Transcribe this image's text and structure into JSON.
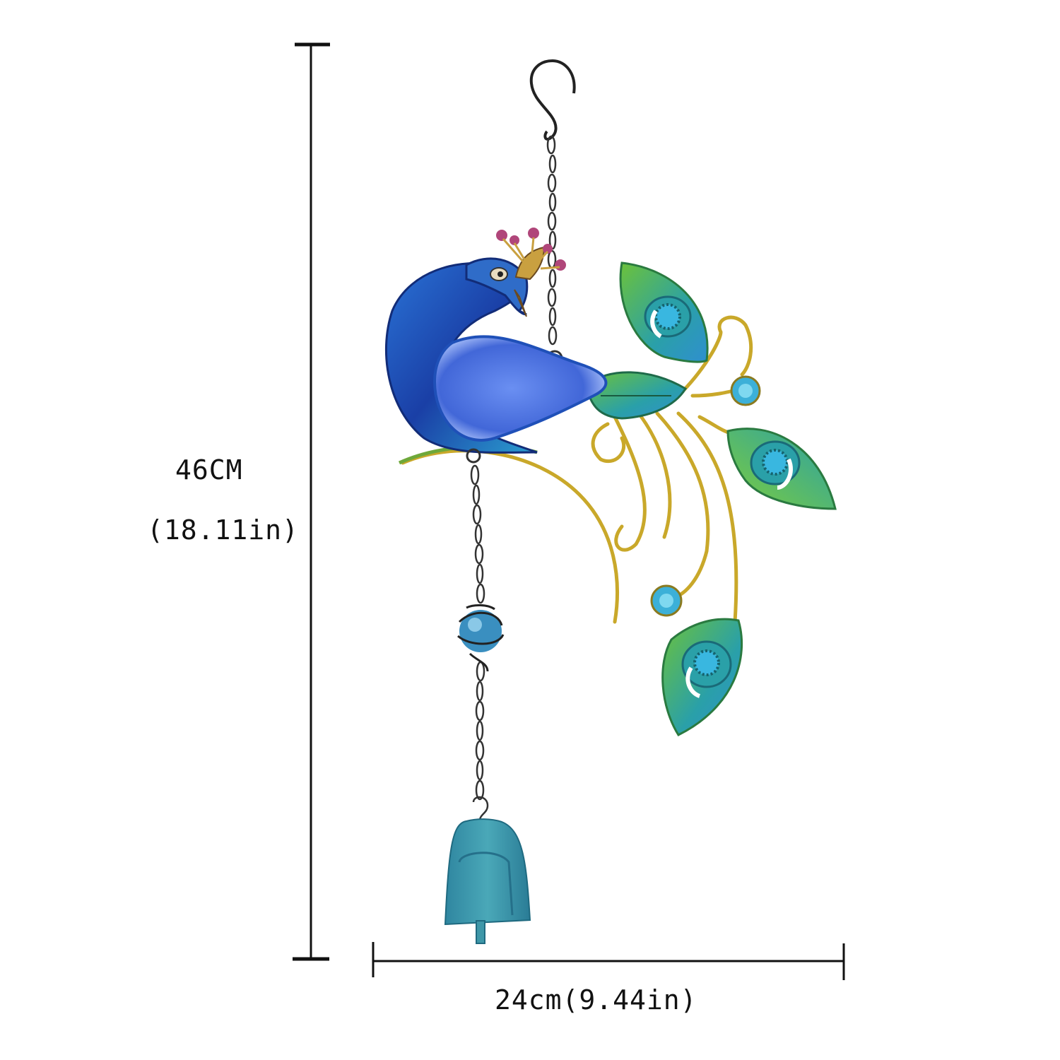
{
  "dimensions": {
    "height_cm": "46CM",
    "height_in": "(18.11in)",
    "width": "24cm(9.44in)"
  },
  "colors": {
    "peacock_blue": "#1f4fb8",
    "wing_glass": "#5a84ec",
    "feather_teal": "#2aa0a8",
    "feather_green": "#6cc23a",
    "gold": "#c9a82a",
    "bell_teal": "#3e97a8",
    "crown_pink": "#b0467a"
  }
}
